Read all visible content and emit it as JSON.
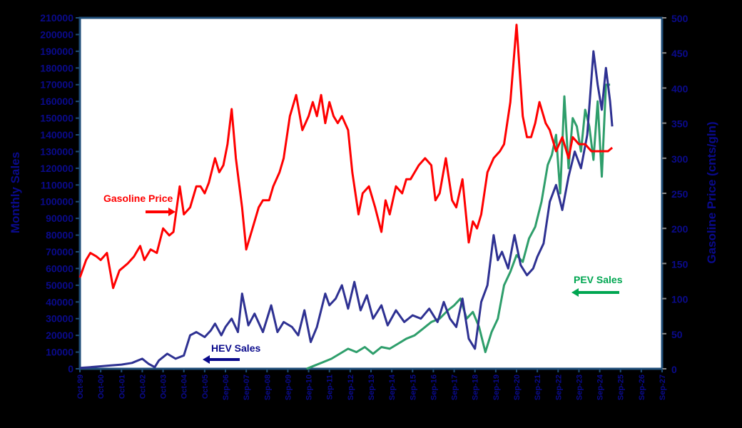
{
  "chart_data": {
    "type": "line",
    "title": "",
    "xlabel": "",
    "ylabel": "Monthly Sales",
    "y2label": "Gasoline Price (cnts/gln)",
    "ylim": [
      0,
      210000
    ],
    "y2lim": [
      0,
      500
    ],
    "grid": false,
    "legend_position": "inline annotations",
    "y_ticks": [
      "0",
      "10000",
      "20000",
      "30000",
      "40000",
      "50000",
      "60000",
      "70000",
      "80000",
      "90000",
      "100000",
      "110000",
      "120000",
      "130000",
      "140000",
      "150000",
      "160000",
      "170000",
      "180000",
      "190000",
      "200000",
      "210000"
    ],
    "y2_ticks": [
      "0",
      "50",
      "100",
      "150",
      "200",
      "250",
      "300",
      "350",
      "400",
      "450",
      "500"
    ],
    "x_ticks": [
      "Oct-99",
      "Oct-00",
      "Oct-01",
      "Oct-02",
      "Oct-03",
      "Oct-04",
      "Oct-05",
      "Sep-06",
      "Sep-07",
      "Sep-08",
      "Sep-09",
      "Sep-10",
      "Sep-11",
      "Sep-12",
      "Sep-13",
      "Sep-14",
      "Sep-15",
      "Sep-16",
      "Sep-17",
      "Sep-18",
      "Sep-19",
      "Sep-20",
      "Sep-21",
      "Sep-22",
      "Sep-23",
      "Sep-24",
      "Sep-25",
      "Sep-26",
      "Sep-27"
    ],
    "annotations": [
      {
        "text": "Gasoline Price",
        "color": "#ff0000",
        "arrow": "right"
      },
      {
        "text": "HEV Sales",
        "color": "#0a0a8c",
        "arrow": "left"
      },
      {
        "text": "PEV Sales",
        "color": "#00a651",
        "arrow": "left"
      }
    ],
    "series": [
      {
        "name": "Gasoline Price",
        "axis": "right",
        "color": "#ff0000",
        "x": [
          0,
          0.3,
          0.5,
          0.8,
          1.0,
          1.3,
          1.6,
          1.9,
          2.1,
          2.3,
          2.6,
          2.9,
          3.1,
          3.4,
          3.7,
          4.0,
          4.3,
          4.5,
          4.8,
          5.0,
          5.3,
          5.6,
          5.8,
          6.0,
          6.2,
          6.5,
          6.7,
          6.9,
          7.1,
          7.3,
          7.5,
          7.8,
          8.0,
          8.3,
          8.6,
          8.8,
          9.1,
          9.3,
          9.6,
          9.8,
          10.1,
          10.4,
          10.7,
          11.0,
          11.2,
          11.4,
          11.6,
          11.8,
          12.0,
          12.2,
          12.4,
          12.6,
          12.9,
          13.1,
          13.4,
          13.6,
          13.9,
          14.2,
          14.5,
          14.7,
          14.9,
          15.2,
          15.5,
          15.7,
          15.9,
          16.1,
          16.3,
          16.6,
          16.9,
          17.1,
          17.3,
          17.6,
          17.9,
          18.1,
          18.4,
          18.7,
          18.9,
          19.1,
          19.3,
          19.6,
          19.9,
          20.2,
          20.4,
          20.7,
          21.0,
          21.3,
          21.5,
          21.7,
          21.9,
          22.1,
          22.4,
          22.6,
          22.9,
          23.2,
          23.5,
          23.7,
          24.0,
          24.3,
          24.6,
          24.9,
          25.2,
          25.4,
          25.6
        ],
        "values": [
          130,
          155,
          165,
          160,
          155,
          165,
          115,
          140,
          145,
          150,
          160,
          175,
          155,
          170,
          165,
          200,
          190,
          195,
          260,
          220,
          230,
          260,
          260,
          250,
          265,
          300,
          280,
          290,
          320,
          370,
          300,
          230,
          170,
          200,
          230,
          240,
          240,
          260,
          280,
          300,
          360,
          390,
          340,
          360,
          380,
          360,
          390,
          350,
          380,
          360,
          350,
          360,
          340,
          280,
          220,
          250,
          260,
          230,
          195,
          240,
          220,
          260,
          250,
          270,
          270,
          280,
          290,
          300,
          290,
          240,
          250,
          300,
          240,
          230,
          270,
          180,
          210,
          200,
          220,
          280,
          300,
          310,
          320,
          380,
          490,
          360,
          330,
          330,
          350,
          380,
          350,
          340,
          310,
          330,
          300,
          330,
          320,
          320,
          310,
          310,
          310,
          310,
          315
        ]
      },
      {
        "name": "HEV Sales",
        "axis": "left",
        "color": "#2e3192",
        "x": [
          0,
          0.5,
          1.0,
          1.5,
          2.0,
          2.5,
          3.0,
          3.3,
          3.6,
          3.8,
          4.2,
          4.6,
          5.0,
          5.3,
          5.6,
          6.0,
          6.3,
          6.5,
          6.8,
          7.0,
          7.3,
          7.6,
          7.8,
          8.1,
          8.4,
          8.8,
          9.2,
          9.5,
          9.8,
          10.2,
          10.5,
          10.8,
          11.1,
          11.4,
          11.8,
          12.0,
          12.3,
          12.6,
          12.9,
          13.2,
          13.5,
          13.8,
          14.1,
          14.5,
          14.8,
          15.2,
          15.6,
          16.0,
          16.4,
          16.8,
          17.2,
          17.5,
          17.8,
          18.1,
          18.4,
          18.7,
          19.0,
          19.3,
          19.6,
          19.9,
          20.1,
          20.3,
          20.6,
          20.9,
          21.2,
          21.5,
          21.8,
          22.0,
          22.3,
          22.6,
          22.9,
          23.2,
          23.5,
          23.8,
          24.1,
          24.4,
          24.7,
          24.9,
          25.1,
          25.3,
          25.5,
          25.6
        ],
        "values": [
          500,
          1000,
          1500,
          2000,
          2500,
          3500,
          6000,
          3000,
          1000,
          5000,
          9000,
          6000,
          8000,
          20000,
          22000,
          19000,
          23000,
          27000,
          20000,
          25000,
          30000,
          22000,
          45000,
          26000,
          33000,
          22000,
          38000,
          22000,
          28000,
          25000,
          20000,
          35000,
          16000,
          25000,
          45000,
          38000,
          42000,
          50000,
          36000,
          52000,
          35000,
          44000,
          30000,
          38000,
          26000,
          35000,
          28000,
          32000,
          30000,
          36000,
          28000,
          40000,
          30000,
          25000,
          42000,
          18000,
          12000,
          40000,
          50000,
          80000,
          65000,
          70000,
          60000,
          80000,
          62000,
          56000,
          60000,
          67000,
          75000,
          100000,
          110000,
          95000,
          115000,
          130000,
          120000,
          140000,
          190000,
          170000,
          155000,
          180000,
          160000,
          145000
        ]
      },
      {
        "name": "PEV Sales",
        "axis": "left",
        "color": "#2e9e6b",
        "x": [
          10.9,
          11.3,
          11.7,
          12.1,
          12.5,
          12.9,
          13.3,
          13.7,
          14.1,
          14.5,
          14.9,
          15.3,
          15.7,
          16.1,
          16.5,
          16.9,
          17.3,
          17.7,
          18.0,
          18.3,
          18.6,
          18.9,
          19.2,
          19.5,
          19.8,
          20.1,
          20.4,
          20.7,
          21.0,
          21.3,
          21.6,
          21.9,
          22.2,
          22.5,
          22.7,
          22.9,
          23.1,
          23.3,
          23.5,
          23.7,
          23.9,
          24.1,
          24.3,
          24.5,
          24.7,
          24.9,
          25.1,
          25.3,
          25.5
        ],
        "values": [
          0,
          2000,
          4000,
          6000,
          9000,
          12000,
          10000,
          13000,
          9000,
          13000,
          12000,
          15000,
          18000,
          20000,
          24000,
          28000,
          30000,
          35000,
          38000,
          42000,
          30000,
          34000,
          25000,
          10000,
          22000,
          30000,
          50000,
          58000,
          68000,
          64000,
          78000,
          85000,
          100000,
          122000,
          128000,
          140000,
          105000,
          163000,
          120000,
          150000,
          145000,
          130000,
          155000,
          145000,
          125000,
          160000,
          115000,
          170000,
          170000
        ]
      }
    ]
  }
}
